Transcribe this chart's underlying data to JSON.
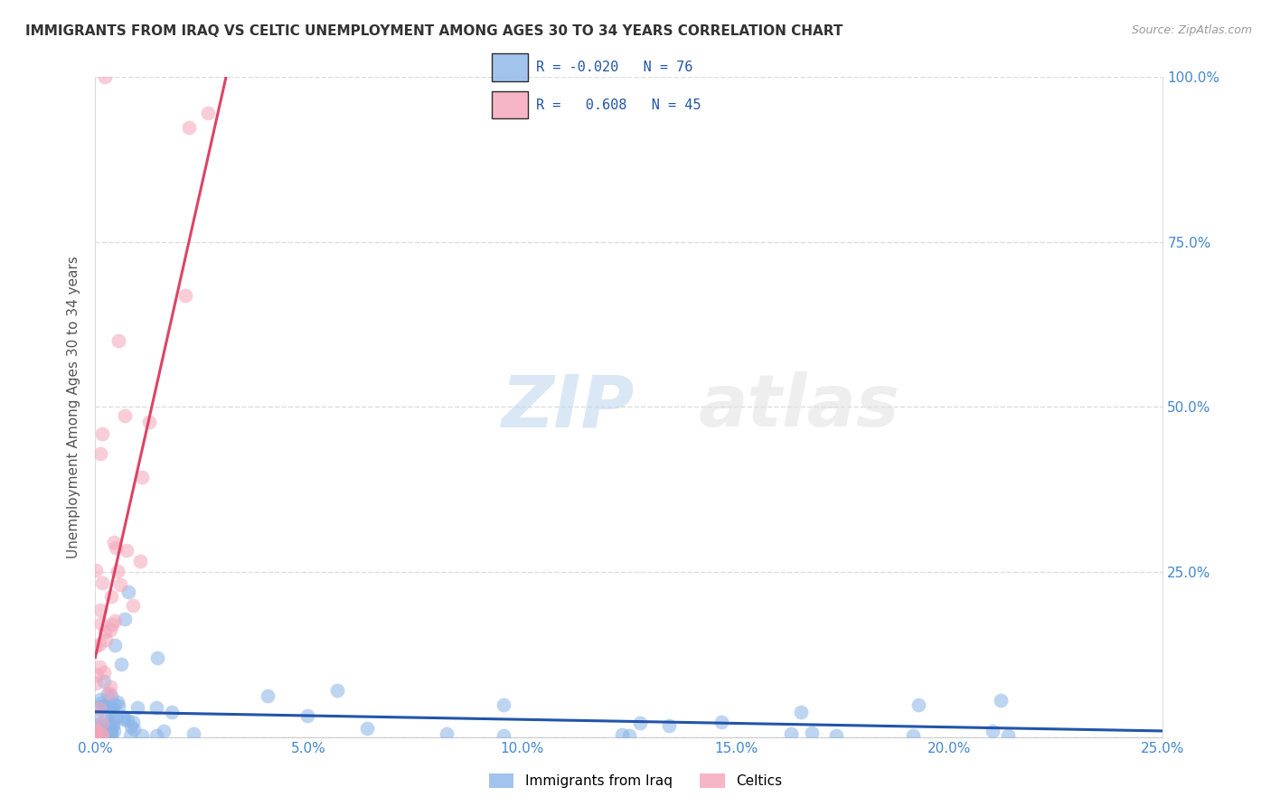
{
  "title": "IMMIGRANTS FROM IRAQ VS CELTIC UNEMPLOYMENT AMONG AGES 30 TO 34 YEARS CORRELATION CHART",
  "source": "Source: ZipAtlas.com",
  "ylabel": "Unemployment Among Ages 30 to 34 years",
  "x_tick_labels": [
    "0.0%",
    "5.0%",
    "10.0%",
    "15.0%",
    "20.0%",
    "25.0%"
  ],
  "x_tick_vals": [
    0.0,
    5.0,
    10.0,
    15.0,
    20.0,
    25.0
  ],
  "y_tick_labels": [
    "100.0%",
    "75.0%",
    "50.0%",
    "25.0%",
    ""
  ],
  "y_tick_vals": [
    100.0,
    75.0,
    50.0,
    25.0,
    0.0
  ],
  "xlim": [
    0.0,
    25.0
  ],
  "ylim": [
    0.0,
    100.0
  ],
  "legend_label1": "Immigrants from Iraq",
  "legend_label2": "Celtics",
  "R1": "-0.020",
  "N1": "76",
  "R2": "0.608",
  "N2": "45",
  "color1": "#8AB4E8",
  "color2": "#F4A4B8",
  "trendline1_color": "#2255AA",
  "trendline2_color": "#DD4466",
  "dashed_line_color": "#CCAAAA",
  "background_color": "#FFFFFF",
  "title_color": "#333333",
  "source_color": "#999999",
  "axis_color": "#4488CC",
  "grid_color": "#DDDDDD",
  "legend_border_color": "#CCCCCC",
  "legend_text_color": "#2255AA",
  "watermark_color": "#D5E5F5",
  "watermark_color2": "#E8E8E8"
}
